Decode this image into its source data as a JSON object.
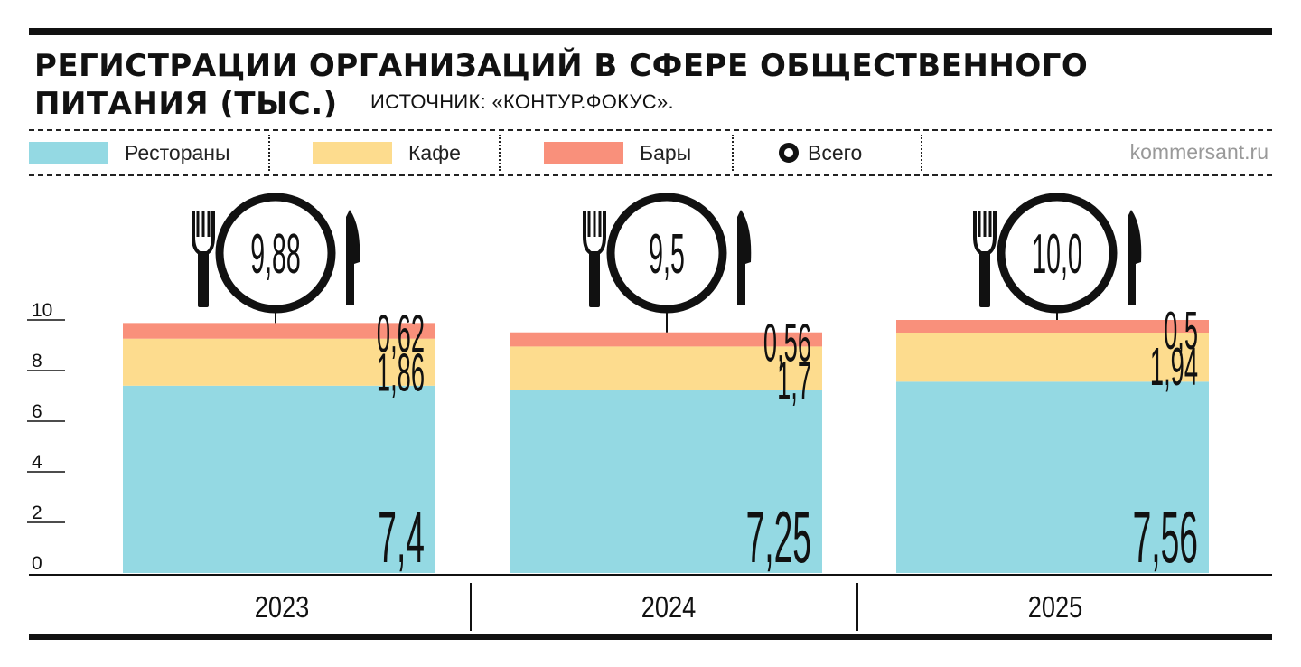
{
  "title_line1": "РЕГИСТРАЦИИ ОРГАНИЗАЦИЙ В СФЕРЕ ОБЩЕСТВЕННОГО",
  "title_line2": "ПИТАНИЯ (ТЫС.)",
  "source": "ИСТОЧНИК: «КОНТУР.ФОКУС».",
  "site": "kommersant.ru",
  "legend": {
    "restaurants": "Рестораны",
    "cafe": "Кафе",
    "bars": "Бары",
    "total": "Всего"
  },
  "colors": {
    "restaurants": "#94d9e3",
    "cafe": "#fddc8e",
    "bars": "#f9907b",
    "ink": "#111111"
  },
  "chart_data": {
    "type": "bar",
    "stacked": true,
    "categories": [
      "2023",
      "2024",
      "2025"
    ],
    "series": [
      {
        "name": "Рестораны",
        "values": [
          7.4,
          7.25,
          7.56
        ],
        "labels": [
          "7,4",
          "7,25",
          "7,56"
        ]
      },
      {
        "name": "Кафе",
        "values": [
          1.86,
          1.7,
          1.94
        ],
        "labels": [
          "1,86",
          "1,7",
          "1,94"
        ]
      },
      {
        "name": "Бары",
        "values": [
          0.62,
          0.56,
          0.5
        ],
        "labels": [
          "0,62",
          "0,56",
          "0,5"
        ]
      }
    ],
    "totals": {
      "name": "Всего",
      "values": [
        9.88,
        9.5,
        10.0
      ],
      "labels": [
        "9,88",
        "9,5",
        "10,0"
      ]
    },
    "yticks": [
      0,
      2,
      4,
      6,
      8,
      10
    ],
    "ylim": [
      0,
      10.6
    ],
    "legend_position": "top",
    "grid": false
  }
}
